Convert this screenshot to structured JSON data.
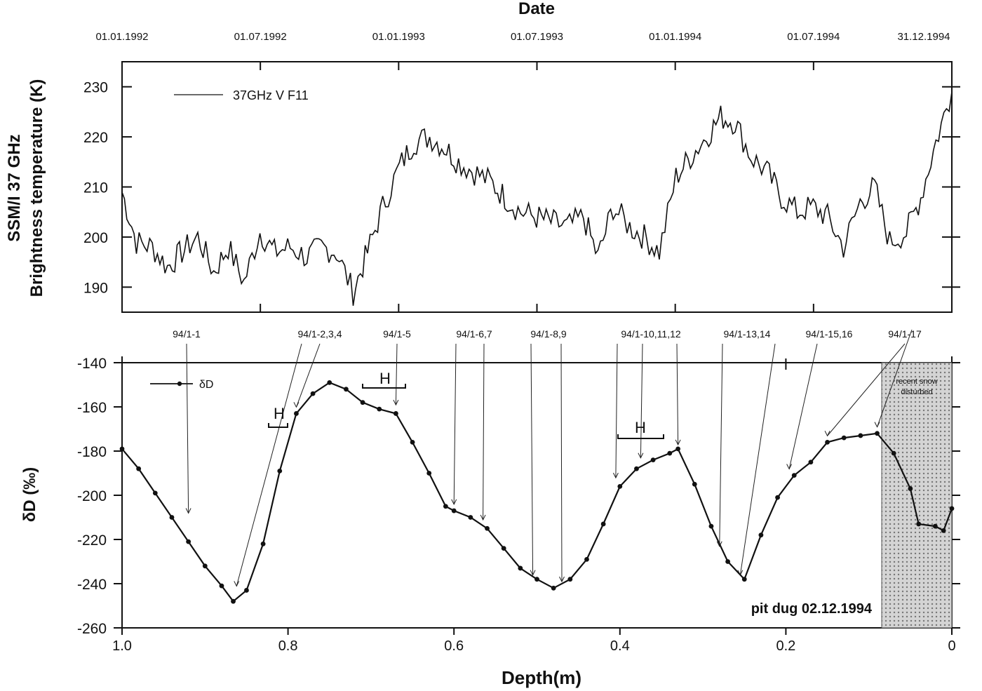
{
  "figure": {
    "top_axis_title": "Date",
    "upper_ylabel_line1": "SSM/I 37 GHz",
    "upper_ylabel_line2": "Brightness temperature (K)",
    "lower_ylabel": "δD (‰)",
    "xlabel": "Depth(m)",
    "pit_label": "pit dug 02.12.1994",
    "shaded_label_line1": "recent snow",
    "shaded_label_line2": "disturbed"
  },
  "colors": {
    "ink": "#111111",
    "background": "#ffffff",
    "shade": "#bdbdbd"
  },
  "chart_data": [
    {
      "type": "line",
      "title": "",
      "xlabel": "Date",
      "ylabel": "SSM/I 37 GHz Brightness temperature (K)",
      "legend": "top-left",
      "date_ticks": [
        "01.01.1992",
        "01.07.1992",
        "01.01.1993",
        "01.07.1993",
        "01.01.1994",
        "01.07.1994",
        "31.12.1994"
      ],
      "ylim": [
        185,
        235
      ],
      "yticks": [
        190,
        200,
        210,
        220,
        230
      ],
      "series": [
        {
          "name": "37GHz V F11",
          "x": [
            "1992-01-01",
            "1992-01-20",
            "1992-02-10",
            "1992-03-01",
            "1992-03-20",
            "1992-04-10",
            "1992-05-01",
            "1992-05-20",
            "1992-06-10",
            "1992-07-01",
            "1992-07-20",
            "1992-08-10",
            "1992-09-01",
            "1992-09-20",
            "1992-10-10",
            "1992-11-01",
            "1992-11-20",
            "1992-12-10",
            "1993-01-01",
            "1993-01-20",
            "1993-02-10",
            "1993-03-01",
            "1993-03-20",
            "1993-04-10",
            "1993-05-01",
            "1993-05-20",
            "1993-06-10",
            "1993-07-01",
            "1993-07-20",
            "1993-08-10",
            "1993-09-01",
            "1993-09-20",
            "1993-10-10",
            "1993-11-01",
            "1993-11-20",
            "1993-12-10",
            "1994-01-01",
            "1994-01-20",
            "1994-02-10",
            "1994-03-01",
            "1994-03-20",
            "1994-04-10",
            "1994-05-01",
            "1994-05-20",
            "1994-06-10",
            "1994-07-01",
            "1994-07-20",
            "1994-08-10",
            "1994-09-01",
            "1994-09-20",
            "1994-10-10",
            "1994-11-01",
            "1994-11-20",
            "1994-12-10",
            "1994-12-31"
          ],
          "values": [
            209,
            199,
            198,
            194,
            197,
            200,
            193,
            198,
            191,
            201,
            197,
            198,
            196,
            198,
            197,
            189,
            197,
            206,
            214,
            219,
            220,
            218,
            215,
            213,
            211,
            208,
            205,
            204,
            203,
            202,
            204,
            196,
            206,
            202,
            200,
            197,
            212,
            216,
            220,
            224,
            223,
            216,
            213,
            208,
            205,
            206,
            204,
            198,
            207,
            210,
            199,
            201,
            208,
            219,
            229
          ]
        }
      ]
    },
    {
      "type": "line",
      "title": "",
      "xlabel": "Depth(m)",
      "ylabel": "δD (‰)",
      "legend": "top-left",
      "xlim": [
        1.0,
        0
      ],
      "xticks": [
        "1.0",
        "0.8",
        "0.6",
        "0.4",
        "0.2",
        "0"
      ],
      "ylim": [
        -260,
        -140
      ],
      "yticks": [
        -140,
        -160,
        -180,
        -200,
        -220,
        -240,
        -260
      ],
      "series": [
        {
          "name": "δD",
          "x": [
            1.0,
            0.98,
            0.96,
            0.94,
            0.92,
            0.9,
            0.88,
            0.866,
            0.85,
            0.83,
            0.81,
            0.79,
            0.77,
            0.75,
            0.73,
            0.71,
            0.69,
            0.67,
            0.65,
            0.63,
            0.61,
            0.6,
            0.58,
            0.56,
            0.54,
            0.52,
            0.5,
            0.48,
            0.46,
            0.44,
            0.42,
            0.4,
            0.38,
            0.36,
            0.34,
            0.33,
            0.31,
            0.29,
            0.27,
            0.25,
            0.23,
            0.21,
            0.19,
            0.17,
            0.15,
            0.13,
            0.11,
            0.09,
            0.07,
            0.05,
            0.04,
            0.02,
            0.01,
            0.0
          ],
          "values": [
            -179,
            -188,
            -199,
            -210,
            -221,
            -232,
            -241,
            -248,
            -243,
            -222,
            -189,
            -163,
            -154,
            -149,
            -152,
            -158,
            -161,
            -163,
            -176,
            -190,
            -205,
            -207,
            -210,
            -215,
            -224,
            -233,
            -238,
            -242,
            -238,
            -229,
            -213,
            -196,
            -188,
            -184,
            -181,
            -179,
            -195,
            -214,
            -230,
            -238,
            -218,
            -201,
            -191,
            -185,
            -176,
            -174,
            -173,
            -172,
            -181,
            -197,
            -213,
            -214,
            -216,
            -206
          ]
        }
      ]
    }
  ],
  "sample_labels": [
    "94/1-1",
    "94/1-2,3,4",
    "94/1-5",
    "94/1-6,7",
    "94/1-8,9",
    "94/1-10,11,12",
    "94/1-13,14",
    "94/1-15,16",
    "94/1-17"
  ],
  "h_marks": [
    "H",
    "H",
    "H"
  ]
}
